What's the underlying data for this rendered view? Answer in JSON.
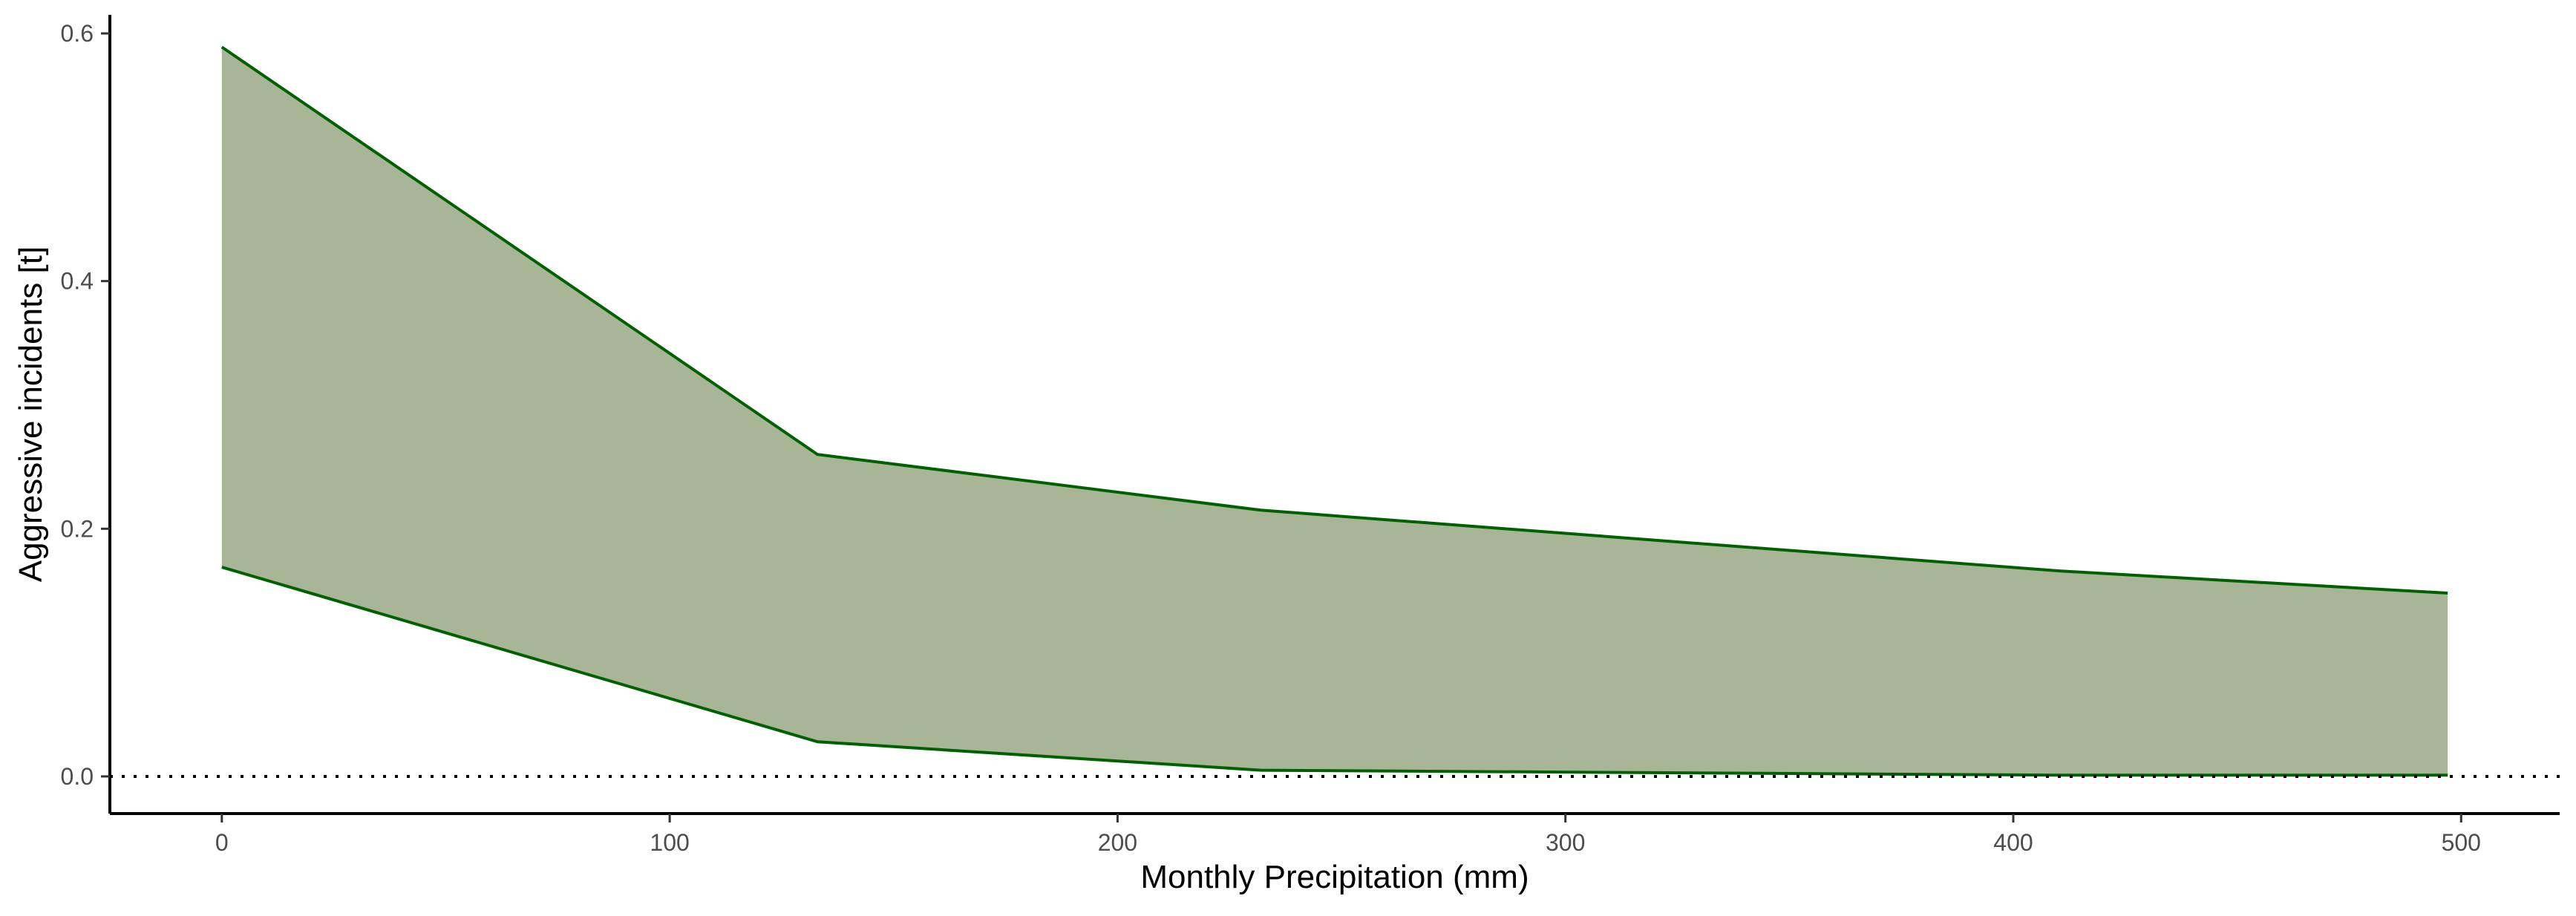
{
  "chart_data": {
    "type": "area",
    "title": "",
    "xlabel": "Monthly Precipitation (mm)",
    "ylabel": "Aggressive incidents [t]",
    "xlim": [
      -25,
      522
    ],
    "ylim": [
      -0.03,
      0.615
    ],
    "x_ticks": [
      0,
      100,
      200,
      300,
      400,
      500
    ],
    "x_tick_labels": [
      "0",
      "100",
      "200",
      "300",
      "400",
      "500"
    ],
    "y_ticks": [
      0.0,
      0.2,
      0.4,
      0.6
    ],
    "y_tick_labels": [
      "0.0",
      "0.2",
      "0.4",
      "0.6"
    ],
    "grid": false,
    "legend": "none",
    "reference_line": {
      "y": 0,
      "style": "dotted",
      "color": "#000000"
    },
    "band": {
      "fill_color": "#a9b597",
      "line_color": "#006100",
      "x": [
        0,
        133,
        232,
        410,
        497
      ],
      "upper": [
        0.589,
        0.26,
        0.215,
        0.166,
        0.148
      ],
      "lower": [
        0.169,
        0.028,
        0.005,
        0.001,
        0.001
      ]
    }
  }
}
